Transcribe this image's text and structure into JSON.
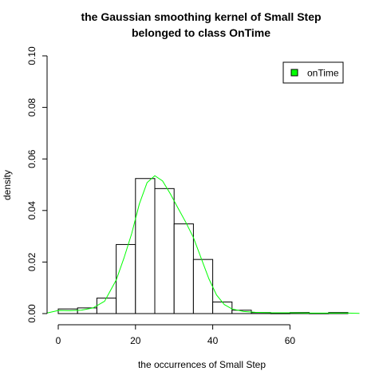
{
  "chart_data": {
    "type": "bar",
    "title": [
      "the Gaussian smoothing kernel of Small Step",
      "belonged to class OnTime"
    ],
    "xlabel": "the occurrences of Small Step",
    "ylabel": "density",
    "xlim": [
      0,
      78
    ],
    "ylim": [
      0,
      0.1
    ],
    "x_ticks": [
      0,
      20,
      40,
      60
    ],
    "x_tick_labels": [
      "0",
      "20",
      "40",
      "60"
    ],
    "y_ticks": [
      0,
      0.02,
      0.04,
      0.06,
      0.08,
      0.1
    ],
    "y_tick_labels": [
      "0.00",
      "0.02",
      "0.04",
      "0.06",
      "0.08",
      "0.10"
    ],
    "grid": false,
    "legend_position": "top-right",
    "histogram": {
      "bin_edges": [
        0,
        5,
        10,
        15,
        20,
        25,
        30,
        35,
        40,
        45,
        50,
        55,
        60,
        65,
        70,
        75
      ],
      "values": [
        0.0018,
        0.0022,
        0.006,
        0.0268,
        0.0524,
        0.0485,
        0.0348,
        0.021,
        0.0045,
        0.0013,
        0.0004,
        0.0001,
        0.0004,
        0.0001,
        0.0004
      ]
    },
    "series": [
      {
        "name": "onTime",
        "color": "#00ff00",
        "x": [
          -3,
          0,
          3,
          6,
          9,
          12,
          15,
          17,
          19,
          21,
          23,
          25,
          27,
          29,
          31,
          33,
          35,
          37,
          39,
          41,
          43,
          45,
          48,
          51,
          55,
          60,
          65,
          70,
          75,
          78
        ],
        "y": [
          0.0002,
          0.0012,
          0.0011,
          0.0013,
          0.0022,
          0.0048,
          0.013,
          0.0215,
          0.031,
          0.0425,
          0.0508,
          0.0535,
          0.0515,
          0.0465,
          0.041,
          0.0355,
          0.0295,
          0.0215,
          0.0135,
          0.0072,
          0.0035,
          0.0018,
          0.0008,
          0.0005,
          0.0003,
          0.0003,
          0.0002,
          0.0002,
          0.0002,
          0.0001
        ]
      }
    ]
  }
}
